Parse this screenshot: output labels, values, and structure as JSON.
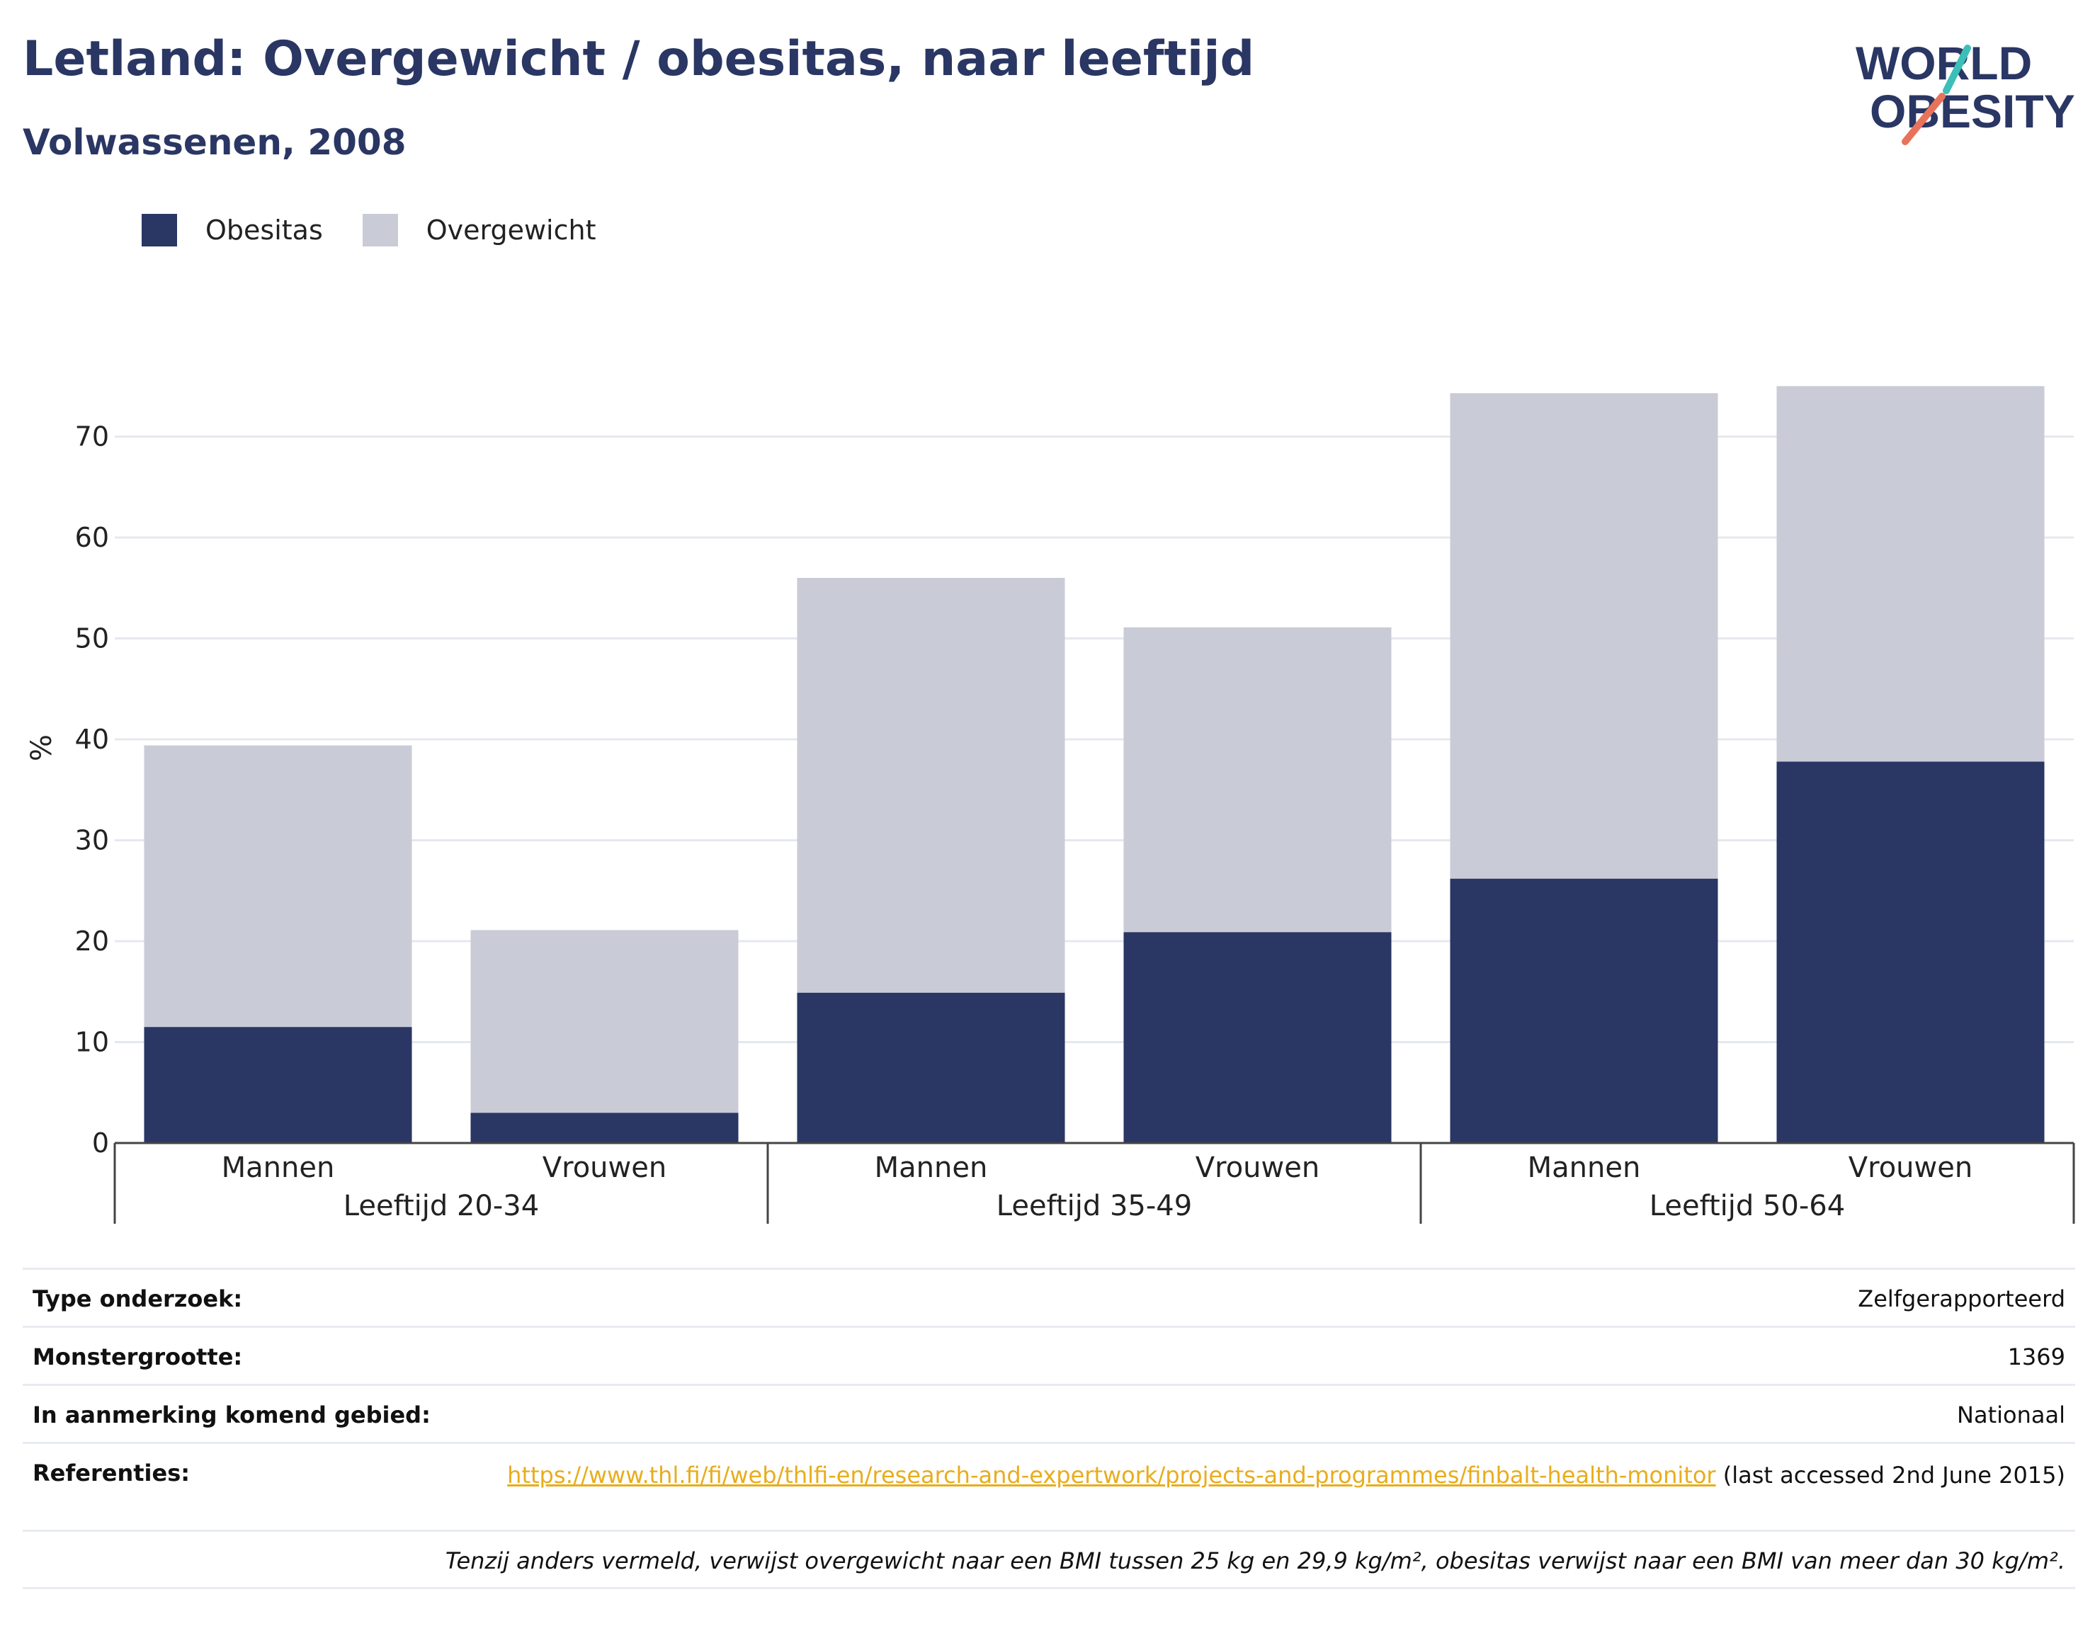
{
  "header": {
    "title": "Letland: Overgewicht / obesitas, naar leeftijd",
    "subtitle": "Volwassenen, 2008"
  },
  "logo": {
    "line1": "WORLD",
    "line2": "OBESITY",
    "colors": {
      "text": "#2a3663",
      "slash_top": "#3bbfb8",
      "slash_bottom": "#e8735a"
    }
  },
  "legend": [
    {
      "label": "Obesitas",
      "color": "#2a3663"
    },
    {
      "label": "Overgewicht",
      "color": "#c9cbd7"
    }
  ],
  "chart_data": {
    "type": "bar",
    "stacked": true,
    "ylabel": "%",
    "ylim": [
      0,
      75
    ],
    "yticks": [
      0,
      10,
      20,
      30,
      40,
      50,
      60,
      70
    ],
    "grid": true,
    "legend_position": "top-left",
    "groups": [
      {
        "label": "Leeftijd 20-34",
        "categories": [
          "Mannen",
          "Vrouwen"
        ]
      },
      {
        "label": "Leeftijd 35-49",
        "categories": [
          "Mannen",
          "Vrouwen"
        ]
      },
      {
        "label": "Leeftijd 50-64",
        "categories": [
          "Mannen",
          "Vrouwen"
        ]
      }
    ],
    "series": [
      {
        "name": "Obesitas",
        "color": "#2a3663",
        "values": [
          11.5,
          3.0,
          14.9,
          20.9,
          26.2,
          37.8
        ]
      },
      {
        "name": "Overgewicht",
        "color": "#c9cbd7",
        "values": [
          27.9,
          18.1,
          41.1,
          30.2,
          48.1,
          37.2
        ]
      }
    ]
  },
  "meta": {
    "survey_type_key": "Type onderzoek:",
    "survey_type_val": "Zelfgerapporteerd",
    "sample_key": "Monstergrootte:",
    "sample_val": "1369",
    "area_key": "In aanmerking komend gebied:",
    "area_val": "Nationaal",
    "ref_key": "Referenties:",
    "ref_link": "https://www.thl.fi/fi/web/thlfi-en/research-and-expertwork/projects-and-programmes/finbalt-health-monitor",
    "ref_suffix": " (last accessed 2nd June 2015)",
    "note": "Tenzij anders vermeld, verwijst overgewicht naar een BMI tussen 25 kg en 29,9 kg/m², obesitas verwijst naar een BMI van meer dan 30 kg/m²."
  }
}
